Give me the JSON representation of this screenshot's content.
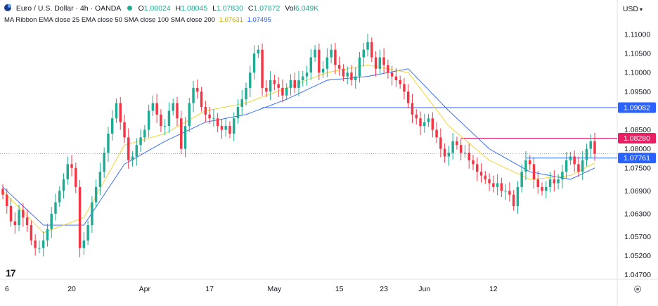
{
  "header": {
    "symbol": "Euro / U.S. Dollar · 4h · OANDA",
    "open_label": "O",
    "open": "1.08024",
    "high_label": "H",
    "high": "1.08045",
    "low_label": "L",
    "low": "1.07830",
    "close_label": "C",
    "close": "1.07872",
    "vol_label": "Vol",
    "vol": "6.049K"
  },
  "indicator": {
    "label": "MA Ribbon EMA close 25 EMA close 50 SMA close 100 SMA close 200",
    "value1": "1.07631",
    "value2": "1.07495"
  },
  "currency": "USD",
  "colors": {
    "up": "#22ab94",
    "down": "#f23645",
    "ema_fast": "#f5d020",
    "ema_slow": "#2962ff",
    "hline_blue": "#2962ff",
    "hline_red": "#e91e63"
  },
  "chart_data": {
    "type": "candlestick",
    "ylim": [
      1.046,
      1.1135
    ],
    "yticks": [
      "1.11000",
      "1.10500",
      "1.10000",
      "1.09500",
      "1.08500",
      "1.08000",
      "1.07500",
      "1.06900",
      "1.06300",
      "1.05700",
      "1.05200",
      "1.04700"
    ],
    "xtick_labels": [
      "6",
      "20",
      "Apr",
      "17",
      "May",
      "15",
      "23",
      "Jun",
      "12"
    ],
    "price_labels": [
      {
        "label": "1.09082",
        "value": 1.09082,
        "color": "#2962ff"
      },
      {
        "label": "1.08280",
        "value": 1.0828,
        "color": "#e91e63"
      },
      {
        "label": "1.07761",
        "value": 1.07761,
        "color": "#2962ff"
      }
    ],
    "horizontal_lines": [
      {
        "value": 1.09082,
        "color": "#2962ff",
        "from_index": 64
      },
      {
        "value": 1.0828,
        "color": "#e91e63",
        "from_index": 113
      },
      {
        "value": 1.07761,
        "color": "#2962ff",
        "from_index": 129
      }
    ],
    "current_price": 1.07872,
    "close_path": [
      1.068,
      1.065,
      1.061,
      1.06,
      1.064,
      1.062,
      1.06,
      1.056,
      1.054,
      1.054,
      1.056,
      1.059,
      1.063,
      1.066,
      1.069,
      1.072,
      1.076,
      1.075,
      1.07,
      1.054,
      1.056,
      1.06,
      1.066,
      1.07,
      1.074,
      1.079,
      1.084,
      1.088,
      1.092,
      1.087,
      1.083,
      1.077,
      1.078,
      1.081,
      1.083,
      1.085,
      1.09,
      1.092,
      1.089,
      1.086,
      1.086,
      1.09,
      1.092,
      1.088,
      1.08,
      1.086,
      1.092,
      1.096,
      1.095,
      1.091,
      1.089,
      1.088,
      1.088,
      1.086,
      1.085,
      1.086,
      1.084,
      1.088,
      1.091,
      1.093,
      1.096,
      1.1,
      1.105,
      1.106,
      1.096,
      1.095,
      1.098,
      1.097,
      1.096,
      1.094,
      1.096,
      1.098,
      1.096,
      1.098,
      1.099,
      1.1,
      1.104,
      1.106,
      1.1,
      1.101,
      1.104,
      1.106,
      1.102,
      1.101,
      1.099,
      1.1,
      1.098,
      1.099,
      1.104,
      1.106,
      1.108,
      1.104,
      1.101,
      1.104,
      1.102,
      1.1,
      1.099,
      1.098,
      1.097,
      1.095,
      1.092,
      1.089,
      1.088,
      1.086,
      1.087,
      1.088,
      1.085,
      1.083,
      1.08,
      1.078,
      1.079,
      1.082,
      1.081,
      1.079,
      1.079,
      1.077,
      1.076,
      1.074,
      1.073,
      1.072,
      1.071,
      1.07,
      1.071,
      1.069,
      1.069,
      1.068,
      1.065,
      1.07,
      1.074,
      1.077,
      1.076,
      1.072,
      1.07,
      1.069,
      1.07,
      1.072,
      1.071,
      1.072,
      1.074,
      1.077,
      1.078,
      1.076,
      1.074,
      1.077,
      1.08,
      1.082,
      1.0787
    ],
    "x_index_range": [
      0,
      146
    ],
    "ema_fast_anchors": [
      [
        0,
        1.069
      ],
      [
        10,
        1.058
      ],
      [
        20,
        1.062
      ],
      [
        30,
        1.081
      ],
      [
        40,
        1.084
      ],
      [
        50,
        1.09
      ],
      [
        60,
        1.092
      ],
      [
        70,
        1.096
      ],
      [
        80,
        1.1
      ],
      [
        90,
        1.102
      ],
      [
        100,
        1.1
      ],
      [
        110,
        1.086
      ],
      [
        120,
        1.077
      ],
      [
        130,
        1.072
      ],
      [
        140,
        1.073
      ],
      [
        146,
        1.0763
      ]
    ],
    "ema_slow_anchors": [
      [
        0,
        1.07
      ],
      [
        10,
        1.06
      ],
      [
        20,
        1.06
      ],
      [
        30,
        1.076
      ],
      [
        40,
        1.082
      ],
      [
        50,
        1.087
      ],
      [
        60,
        1.089
      ],
      [
        70,
        1.093
      ],
      [
        80,
        1.098
      ],
      [
        90,
        1.099
      ],
      [
        100,
        1.101
      ],
      [
        110,
        1.09
      ],
      [
        120,
        1.08
      ],
      [
        130,
        1.074
      ],
      [
        140,
        1.072
      ],
      [
        146,
        1.075
      ]
    ]
  }
}
